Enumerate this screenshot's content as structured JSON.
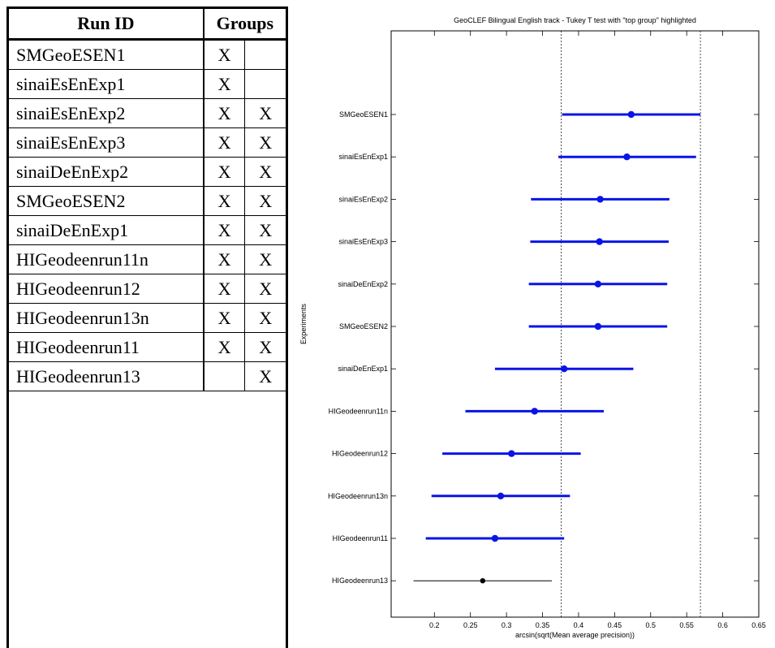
{
  "table": {
    "header": {
      "run_id": "Run ID",
      "groups": "Groups"
    },
    "rows": [
      {
        "run": "SMGeoESEN1",
        "g1": "X",
        "g2": ""
      },
      {
        "run": "sinaiEsEnExp1",
        "g1": "X",
        "g2": ""
      },
      {
        "run": "sinaiEsEnExp2",
        "g1": "X",
        "g2": "X"
      },
      {
        "run": "sinaiEsEnExp3",
        "g1": "X",
        "g2": "X"
      },
      {
        "run": "sinaiDeEnExp2",
        "g1": "X",
        "g2": "X"
      },
      {
        "run": "SMGeoESEN2",
        "g1": "X",
        "g2": "X"
      },
      {
        "run": "sinaiDeEnExp1",
        "g1": "X",
        "g2": "X"
      },
      {
        "run": "HIGeodeenrun11n",
        "g1": "X",
        "g2": "X"
      },
      {
        "run": "HIGeodeenrun12",
        "g1": "X",
        "g2": "X"
      },
      {
        "run": "HIGeodeenrun13n",
        "g1": "X",
        "g2": "X"
      },
      {
        "run": "HIGeodeenrun11",
        "g1": "X",
        "g2": "X"
      },
      {
        "run": "HIGeodeenrun13",
        "g1": "",
        "g2": "X"
      }
    ]
  },
  "chart_data": {
    "type": "scatter",
    "title": "GeoCLEF Bilingual English track - Tukey T test with \"top group\" highlighted",
    "xlabel": "arcsin(sqrt(Mean average precision))",
    "ylabel": "Experiments",
    "xlim": [
      0.14,
      0.65
    ],
    "xticks": [
      0.2,
      0.25,
      0.3,
      0.35,
      0.4,
      0.45,
      0.5,
      0.55,
      0.6,
      0.65
    ],
    "reference_lines": [
      0.376,
      0.569
    ],
    "colors": {
      "top_group": "#0a14e6",
      "other": "#000000"
    },
    "grid": false,
    "series": [
      {
        "points": [
          {
            "label": "SMGeoESEN1",
            "mean": 0.473,
            "low": 0.377,
            "high": 0.569,
            "top_group": true
          },
          {
            "label": "sinaiEsEnExp1",
            "mean": 0.467,
            "low": 0.372,
            "high": 0.563,
            "top_group": true
          },
          {
            "label": "sinaiEsEnExp2",
            "mean": 0.43,
            "low": 0.334,
            "high": 0.526,
            "top_group": true
          },
          {
            "label": "sinaiEsEnExp3",
            "mean": 0.429,
            "low": 0.333,
            "high": 0.525,
            "top_group": true
          },
          {
            "label": "sinaiDeEnExp2",
            "mean": 0.427,
            "low": 0.331,
            "high": 0.523,
            "top_group": true
          },
          {
            "label": "SMGeoESEN2",
            "mean": 0.427,
            "low": 0.331,
            "high": 0.523,
            "top_group": true
          },
          {
            "label": "sinaiDeEnExp1",
            "mean": 0.38,
            "low": 0.284,
            "high": 0.476,
            "top_group": true
          },
          {
            "label": "HIGeodeenrun11n",
            "mean": 0.339,
            "low": 0.243,
            "high": 0.435,
            "top_group": true
          },
          {
            "label": "HIGeodeenrun12",
            "mean": 0.307,
            "low": 0.211,
            "high": 0.403,
            "top_group": true
          },
          {
            "label": "HIGeodeenrun13n",
            "mean": 0.292,
            "low": 0.196,
            "high": 0.388,
            "top_group": true
          },
          {
            "label": "HIGeodeenrun11",
            "mean": 0.284,
            "low": 0.188,
            "high": 0.38,
            "top_group": true
          },
          {
            "label": "HIGeodeenrun13",
            "mean": 0.267,
            "low": 0.171,
            "high": 0.363,
            "top_group": false
          }
        ]
      }
    ]
  }
}
